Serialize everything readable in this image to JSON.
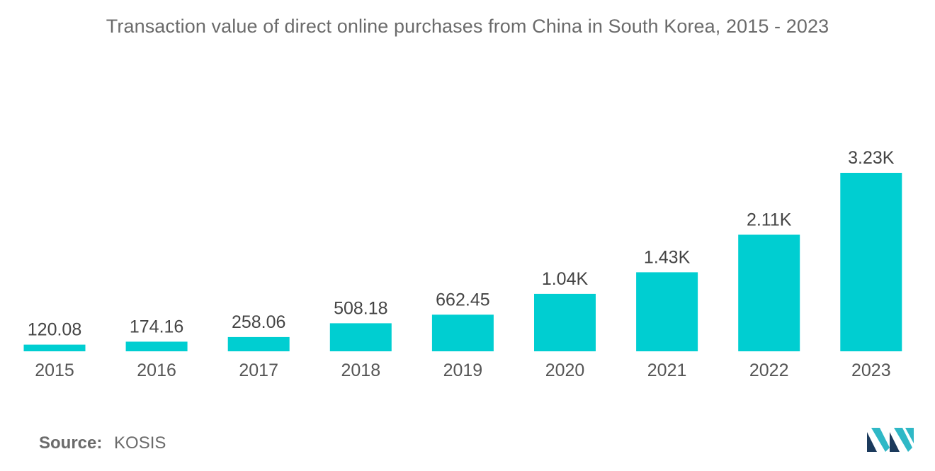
{
  "title": "Transaction value of direct online purchases from China in South Korea, 2015 - 2023",
  "source": {
    "label": "Source:",
    "value": "KOSIS"
  },
  "logo": {
    "icon": "mordor-intelligence-logo-icon",
    "colors": [
      "#1b3a5c",
      "#2fb8c6"
    ]
  },
  "chart_data": {
    "type": "bar",
    "categories": [
      "2015",
      "2016",
      "2017",
      "2018",
      "2019",
      "2020",
      "2021",
      "2022",
      "2023"
    ],
    "values": [
      120.08,
      174.16,
      258.06,
      508.18,
      662.45,
      1040,
      1430,
      2110,
      3230
    ],
    "value_labels": [
      "120.08",
      "174.16",
      "258.06",
      "508.18",
      "662.45",
      "1.04K",
      "1.43K",
      "2.11K",
      "3.23K"
    ],
    "bar_color": "#00ced1",
    "xlabel": "",
    "ylabel": "",
    "ylim": [
      0,
      3230
    ],
    "grid": false,
    "legend": "none"
  }
}
